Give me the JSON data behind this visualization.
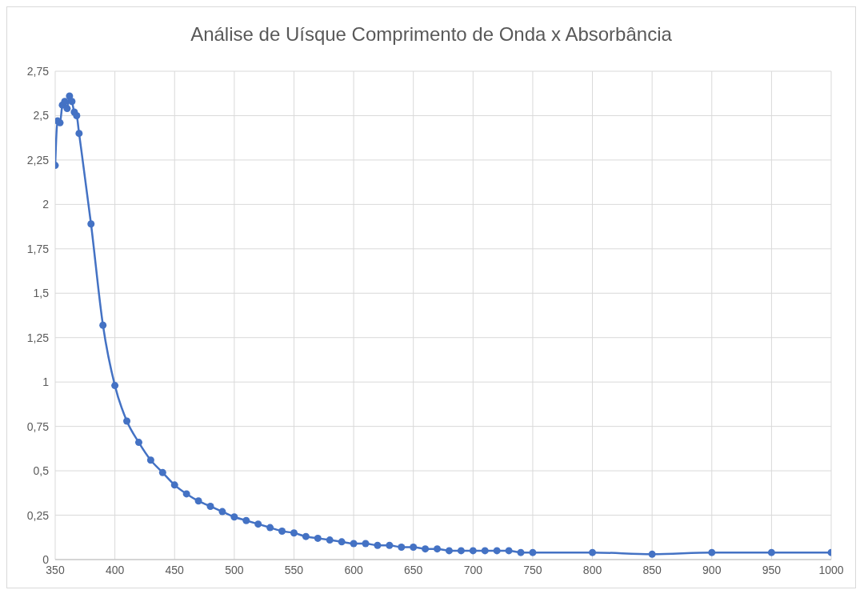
{
  "chart_data": {
    "type": "line",
    "title": "Análise de Uísque Comprimento de Onda x Absorbância",
    "x": [
      350,
      352,
      354,
      356,
      358,
      360,
      362,
      364,
      366,
      368,
      370,
      380,
      390,
      400,
      410,
      420,
      430,
      440,
      450,
      460,
      470,
      480,
      490,
      500,
      510,
      520,
      530,
      540,
      550,
      560,
      570,
      580,
      590,
      600,
      610,
      620,
      630,
      640,
      650,
      660,
      670,
      680,
      690,
      700,
      710,
      720,
      730,
      740,
      750,
      800,
      850,
      900,
      950,
      1000
    ],
    "series": [
      {
        "color": "#4472c4",
        "values": [
          2.22,
          2.47,
          2.46,
          2.56,
          2.58,
          2.54,
          2.61,
          2.58,
          2.52,
          2.5,
          2.4,
          1.89,
          1.32,
          0.98,
          0.78,
          0.66,
          0.56,
          0.49,
          0.42,
          0.37,
          0.33,
          0.3,
          0.27,
          0.24,
          0.22,
          0.2,
          0.18,
          0.16,
          0.15,
          0.13,
          0.12,
          0.11,
          0.1,
          0.09,
          0.09,
          0.08,
          0.08,
          0.07,
          0.07,
          0.06,
          0.06,
          0.05,
          0.05,
          0.05,
          0.05,
          0.05,
          0.05,
          0.04,
          0.04,
          0.04,
          0.03,
          0.04,
          0.04,
          0.04
        ]
      }
    ],
    "xlim": [
      350,
      1000
    ],
    "xticks": [
      350,
      400,
      450,
      500,
      550,
      600,
      650,
      700,
      750,
      800,
      850,
      900,
      950,
      1000
    ],
    "ylim": [
      0,
      2.75
    ],
    "yticks": [
      0,
      {
        "value": 0.25,
        "label": "0,25"
      },
      {
        "value": 0.5,
        "label": "0,5"
      },
      {
        "value": 0.75,
        "label": "0,75"
      },
      1,
      {
        "value": 1.25,
        "label": "1,25"
      },
      {
        "value": 1.5,
        "label": "1,5"
      },
      {
        "value": 1.75,
        "label": "1,75"
      },
      2,
      {
        "value": 2.25,
        "label": "2,25"
      },
      {
        "value": 2.5,
        "label": "2,5"
      },
      {
        "value": 2.75,
        "label": "2,75"
      }
    ],
    "grid": true,
    "marker": "circle",
    "line_style": "solid"
  }
}
